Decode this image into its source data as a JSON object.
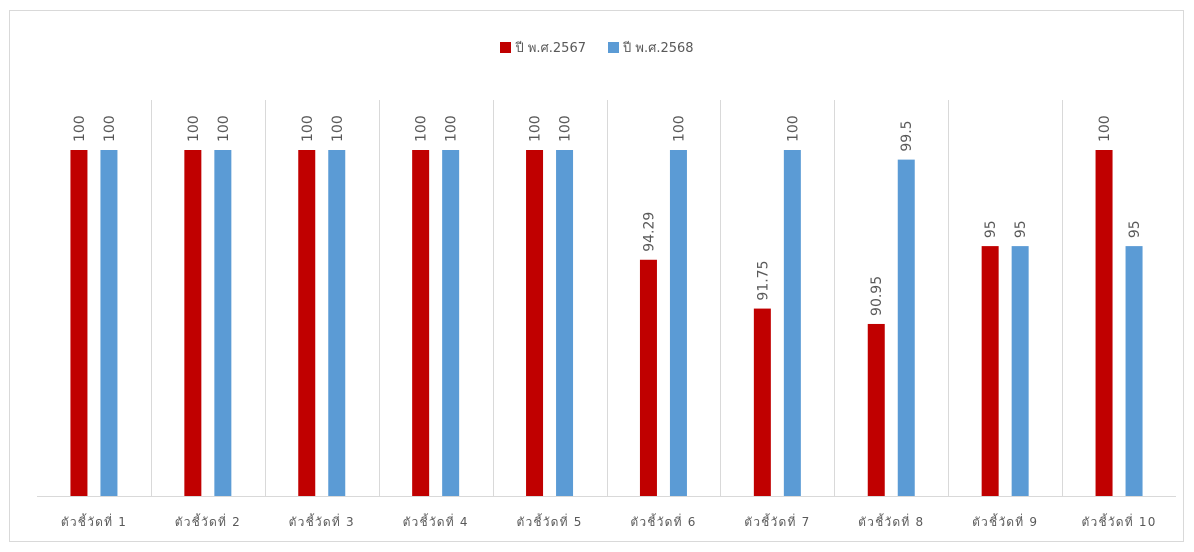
{
  "chart_data": {
    "type": "bar",
    "categories": [
      "ตัวชี้วัดที่ 1",
      "ตัวชี้วัดที่ 2",
      "ตัวชี้วัดที่ 3",
      "ตัวชี้วัดที่ 4",
      "ตัวชี้วัดที่ 5",
      "ตัวชี้วัดที่ 6",
      "ตัวชี้วัดที่ 7",
      "ตัวชี้วัดที่ 8",
      "ตัวชี้วัดที่ 9",
      "ตัวชี้วัดที่ 10"
    ],
    "series": [
      {
        "name": "ปี พ.ศ.2567",
        "color": "#c00000",
        "values": [
          100,
          100,
          100,
          100,
          100,
          94.29,
          91.75,
          90.95,
          95,
          100
        ],
        "labels": [
          "100",
          "100",
          "100",
          "100",
          "100",
          "94.29",
          "91.75",
          "90.95",
          "95",
          "100"
        ]
      },
      {
        "name": "ปี พ.ศ.2568",
        "color": "#5b9bd5",
        "values": [
          100,
          100,
          100,
          100,
          100,
          100,
          100,
          99.5,
          95,
          95
        ],
        "labels": [
          "100",
          "100",
          "100",
          "100",
          "100",
          "100",
          "100",
          "99.5",
          "95",
          "95"
        ]
      }
    ],
    "ylim": [
      82,
      100
    ],
    "grid": "vertical category separators",
    "legend_position": "top"
  }
}
